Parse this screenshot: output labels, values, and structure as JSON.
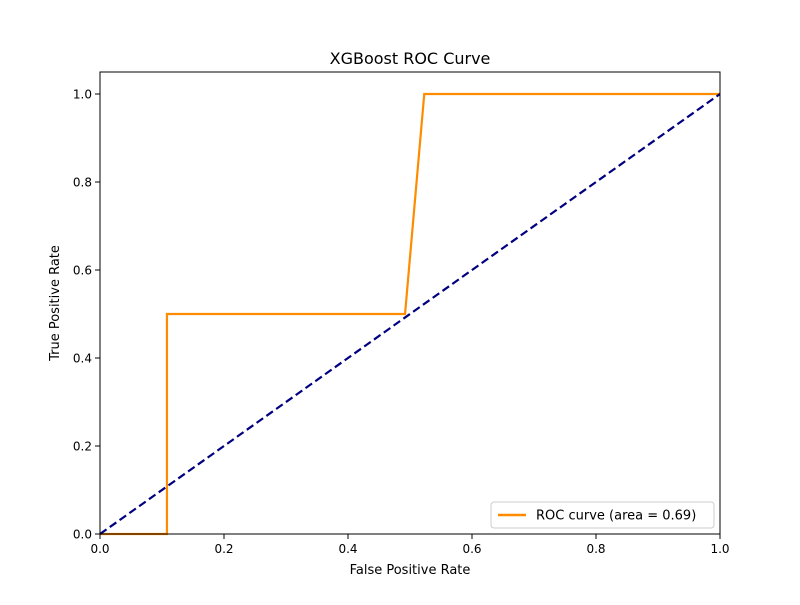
{
  "chart_data": {
    "type": "line",
    "title": "XGBoost ROC Curve",
    "xlabel": "False Positive Rate",
    "ylabel": "True Positive Rate",
    "xlim": [
      0.0,
      1.0
    ],
    "ylim": [
      0.0,
      1.05
    ],
    "xticks": [
      0.0,
      0.2,
      0.4,
      0.6,
      0.8,
      1.0
    ],
    "yticks": [
      0.0,
      0.2,
      0.4,
      0.6,
      0.8,
      1.0
    ],
    "xtick_labels": [
      "0.0",
      "0.2",
      "0.4",
      "0.6",
      "0.8",
      "1.0"
    ],
    "ytick_labels": [
      "0.0",
      "0.2",
      "0.4",
      "0.6",
      "0.8",
      "1.0"
    ],
    "grid": false,
    "legend_position": "lower-right",
    "series": [
      {
        "name": "ROC curve (area = 0.69)",
        "color": "#ff8c00",
        "style": "solid",
        "x": [
          0.0,
          0.108,
          0.108,
          0.492,
          0.523,
          1.0
        ],
        "y": [
          0.0,
          0.0,
          0.5,
          0.5,
          1.0,
          1.0
        ]
      },
      {
        "color": "#000080",
        "style": "dashed",
        "x": [
          0.0,
          1.0
        ],
        "y": [
          0.0,
          1.0
        ]
      }
    ]
  }
}
